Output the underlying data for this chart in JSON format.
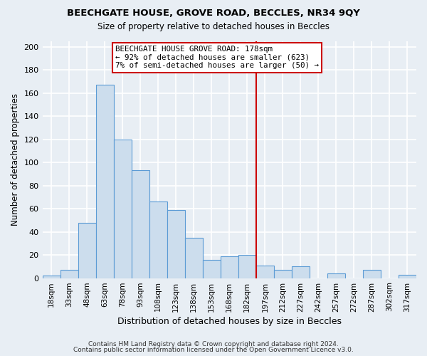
{
  "title": "BEECHGATE HOUSE, GROVE ROAD, BECCLES, NR34 9QY",
  "subtitle": "Size of property relative to detached houses in Beccles",
  "xlabel": "Distribution of detached houses by size in Beccles",
  "ylabel": "Number of detached properties",
  "bar_labels": [
    "18sqm",
    "33sqm",
    "48sqm",
    "63sqm",
    "78sqm",
    "93sqm",
    "108sqm",
    "123sqm",
    "138sqm",
    "153sqm",
    "168sqm",
    "182sqm",
    "197sqm",
    "212sqm",
    "227sqm",
    "242sqm",
    "257sqm",
    "272sqm",
    "287sqm",
    "302sqm",
    "317sqm"
  ],
  "bar_heights": [
    2,
    7,
    48,
    167,
    120,
    93,
    66,
    59,
    35,
    16,
    19,
    20,
    11,
    7,
    10,
    0,
    4,
    0,
    7,
    0,
    3
  ],
  "bar_color": "#ccdded",
  "bar_edge_color": "#5b9bd5",
  "vline_x": 11.5,
  "vline_color": "#cc0000",
  "annotation_title": "BEECHGATE HOUSE GROVE ROAD: 178sqm",
  "annotation_line1": "← 92% of detached houses are smaller (623)",
  "annotation_line2": "7% of semi-detached houses are larger (50) →",
  "annotation_box_color": "#ffffff",
  "annotation_box_edge": "#cc0000",
  "yticks": [
    0,
    20,
    40,
    60,
    80,
    100,
    120,
    140,
    160,
    180,
    200
  ],
  "ylim": [
    0,
    205
  ],
  "footer1": "Contains HM Land Registry data © Crown copyright and database right 2024.",
  "footer2": "Contains public sector information licensed under the Open Government Licence v3.0.",
  "background_color": "#e8eef4"
}
